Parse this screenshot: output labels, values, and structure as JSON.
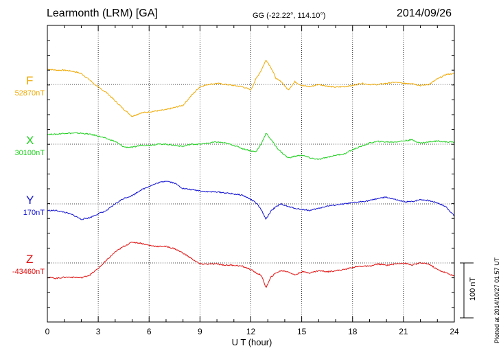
{
  "header": {
    "station": "Learmonth (LRM)  [GA]",
    "coords": "GG (-22.22°, 114.10°)",
    "date": "2014/09/26"
  },
  "plotted_text": "Plotted at 2014/10/27 01:57 UT",
  "scale_label": "100 nT",
  "colors": {
    "F": "#f0a800",
    "X": "#1ed01e",
    "Y": "#1010d0",
    "Z": "#e01010"
  },
  "chart_data": {
    "type": "line",
    "title": "",
    "xlabel": "U T (hour)",
    "ylabel": "",
    "xlim": [
      0,
      24
    ],
    "xticks": [
      "0",
      "3",
      "6",
      "9",
      "12",
      "15",
      "18",
      "21",
      "24"
    ],
    "grid": true,
    "scale_bar_nT": 100,
    "series": [
      {
        "name": "F",
        "baseline_label": "52870nT",
        "x": [
          0,
          0.5,
          1,
          1.5,
          2,
          2.5,
          3,
          3.5,
          4,
          4.5,
          5,
          5.5,
          6,
          6.5,
          7,
          7.5,
          8,
          8.5,
          9,
          9.5,
          10,
          10.5,
          11,
          11.5,
          12,
          12.3,
          12.6,
          12.9,
          13.2,
          13.5,
          13.8,
          14.2,
          14.6,
          15,
          15.5,
          16,
          16.5,
          17,
          17.5,
          18,
          18.5,
          19,
          19.5,
          20,
          20.5,
          21,
          21.5,
          22,
          22.5,
          23,
          23.5,
          24
        ],
        "values": [
          28,
          26,
          26,
          24,
          20,
          8,
          -5,
          -15,
          -30,
          -45,
          -58,
          -52,
          -50,
          -48,
          -46,
          -42,
          -38,
          -20,
          -4,
          0,
          2,
          0,
          -2,
          -4,
          -10,
          10,
          25,
          45,
          30,
          10,
          5,
          -10,
          5,
          -2,
          -4,
          0,
          -3,
          -5,
          -4,
          -2,
          2,
          0,
          0,
          2,
          4,
          2,
          2,
          -2,
          0,
          10,
          18,
          20
        ]
      },
      {
        "name": "X",
        "baseline_label": "30100nT",
        "x": [
          0,
          0.5,
          1,
          1.5,
          2,
          2.5,
          3,
          3.5,
          4,
          4.5,
          5,
          5.5,
          6,
          6.5,
          7,
          7.5,
          8,
          8.5,
          9,
          9.5,
          10,
          10.5,
          11,
          11.5,
          12,
          12.3,
          12.6,
          12.9,
          13.2,
          13.5,
          13.8,
          14.2,
          14.6,
          15,
          15.5,
          16,
          16.5,
          17,
          17.5,
          18,
          18.5,
          19,
          19.5,
          20,
          20.5,
          21,
          21.5,
          22,
          22.5,
          23,
          23.5,
          24
        ],
        "values": [
          18,
          18,
          20,
          20,
          20,
          18,
          15,
          10,
          5,
          -5,
          -6,
          -2,
          -2,
          0,
          0,
          -2,
          -4,
          0,
          0,
          2,
          4,
          2,
          -2,
          -8,
          -12,
          -14,
          0,
          20,
          8,
          -5,
          -15,
          -25,
          -22,
          -20,
          -25,
          -28,
          -24,
          -20,
          -18,
          -10,
          -4,
          2,
          5,
          4,
          4,
          6,
          8,
          2,
          4,
          6,
          4,
          4
        ]
      },
      {
        "name": "Y",
        "baseline_label": "170nT",
        "x": [
          0,
          0.5,
          1,
          1.5,
          2,
          2.5,
          3,
          3.5,
          4,
          4.5,
          5,
          5.5,
          6,
          6.5,
          7,
          7.5,
          8,
          8.5,
          9,
          9.5,
          10,
          10.5,
          11,
          11.5,
          12,
          12.3,
          12.6,
          12.9,
          13.2,
          13.5,
          13.8,
          14.2,
          14.6,
          15,
          15.5,
          16,
          16.5,
          17,
          17.5,
          18,
          18.5,
          19,
          19.5,
          20,
          20.5,
          21,
          21.5,
          22,
          22.5,
          23,
          23.5,
          24
        ],
        "values": [
          -12,
          -12,
          -15,
          -20,
          -28,
          -25,
          -18,
          -12,
          0,
          10,
          15,
          25,
          32,
          38,
          42,
          38,
          28,
          26,
          24,
          22,
          22,
          20,
          18,
          16,
          8,
          2,
          -10,
          -28,
          -12,
          -5,
          0,
          -5,
          -8,
          -10,
          -12,
          -8,
          -4,
          -2,
          0,
          2,
          4,
          6,
          10,
          12,
          8,
          4,
          4,
          8,
          6,
          2,
          -5,
          -22
        ]
      },
      {
        "name": "Z",
        "baseline_label": "-43460nT",
        "x": [
          0,
          0.5,
          1,
          1.5,
          2,
          2.5,
          3,
          3.5,
          4,
          4.5,
          5,
          5.5,
          6,
          6.5,
          7,
          7.5,
          8,
          8.5,
          9,
          9.5,
          10,
          10.5,
          11,
          11.5,
          12,
          12.3,
          12.6,
          12.9,
          13.2,
          13.5,
          13.8,
          14.2,
          14.6,
          15,
          15.5,
          16,
          16.5,
          17,
          17.5,
          18,
          18.5,
          19,
          19.5,
          20,
          20.5,
          21,
          21.5,
          22,
          22.5,
          23,
          23.5,
          24
        ],
        "values": [
          -26,
          -28,
          -26,
          -26,
          -27,
          -22,
          -10,
          5,
          20,
          30,
          38,
          36,
          32,
          30,
          30,
          26,
          18,
          8,
          -2,
          -2,
          -2,
          -4,
          -4,
          -6,
          -12,
          -18,
          -22,
          -45,
          -25,
          -18,
          -14,
          -16,
          -22,
          -16,
          -18,
          -14,
          -16,
          -14,
          -12,
          -8,
          -6,
          -6,
          -2,
          -4,
          -2,
          0,
          -4,
          0,
          -2,
          -12,
          -18,
          -24
        ]
      }
    ]
  }
}
